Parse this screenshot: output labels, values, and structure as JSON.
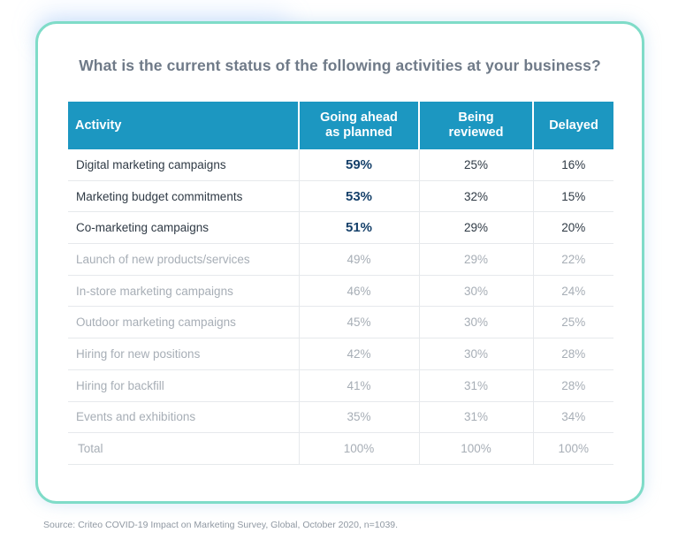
{
  "title": "What is the current status of the following activities at your business?",
  "source": "Source: Criteo COVID-19 Impact on Marketing Survey, Global, October 2020, n=1039.",
  "colors": {
    "header_bg": "#1c97c1",
    "card_border": "#7fdcc8",
    "highlight_text": "#15406a",
    "muted_text": "#a7aeb6"
  },
  "table": {
    "headers": [
      {
        "line1": "Activity",
        "line2": ""
      },
      {
        "line1": "Going ahead",
        "line2": "as planned"
      },
      {
        "line1": "Being",
        "line2": "reviewed"
      },
      {
        "line1": "Delayed",
        "line2": ""
      }
    ],
    "rows": [
      {
        "activity": "Digital marketing campaigns",
        "going_ahead": "59%",
        "being_reviewed": "25%",
        "delayed": "16%",
        "style": "hl"
      },
      {
        "activity": "Marketing budget commitments",
        "going_ahead": "53%",
        "being_reviewed": "32%",
        "delayed": "15%",
        "style": "hl"
      },
      {
        "activity": "Co-marketing campaigns",
        "going_ahead": "51%",
        "being_reviewed": "29%",
        "delayed": "20%",
        "style": "hl"
      },
      {
        "activity": "Launch of new products/services",
        "going_ahead": "49%",
        "being_reviewed": "29%",
        "delayed": "22%",
        "style": "muted"
      },
      {
        "activity": "In-store marketing campaigns",
        "going_ahead": "46%",
        "being_reviewed": "30%",
        "delayed": "24%",
        "style": "muted"
      },
      {
        "activity": "Outdoor marketing campaigns",
        "going_ahead": "45%",
        "being_reviewed": "30%",
        "delayed": "25%",
        "style": "muted"
      },
      {
        "activity": "Hiring for new positions",
        "going_ahead": "42%",
        "being_reviewed": "30%",
        "delayed": "28%",
        "style": "muted"
      },
      {
        "activity": "Hiring for backfill",
        "going_ahead": "41%",
        "being_reviewed": "31%",
        "delayed": "28%",
        "style": "muted"
      },
      {
        "activity": "Events and exhibitions",
        "going_ahead": "35%",
        "being_reviewed": "31%",
        "delayed": "34%",
        "style": "muted"
      },
      {
        "activity": "Total",
        "going_ahead": "100%",
        "being_reviewed": "100%",
        "delayed": "100%",
        "style": "muted total"
      }
    ]
  },
  "chart_data": {
    "type": "table",
    "title": "What is the current status of the following activities at your business?",
    "columns": [
      "Activity",
      "Going ahead as planned",
      "Being reviewed",
      "Delayed"
    ],
    "rows": [
      [
        "Digital marketing campaigns",
        59,
        25,
        16
      ],
      [
        "Marketing budget commitments",
        53,
        32,
        15
      ],
      [
        "Co-marketing campaigns",
        51,
        29,
        20
      ],
      [
        "Launch of new products/services",
        49,
        29,
        22
      ],
      [
        "In-store marketing campaigns",
        46,
        30,
        24
      ],
      [
        "Outdoor marketing campaigns",
        45,
        30,
        25
      ],
      [
        "Hiring for new positions",
        42,
        30,
        28
      ],
      [
        "Hiring for backfill",
        41,
        31,
        28
      ],
      [
        "Events and exhibitions",
        35,
        31,
        34
      ],
      [
        "Total",
        100,
        100,
        100
      ]
    ]
  }
}
